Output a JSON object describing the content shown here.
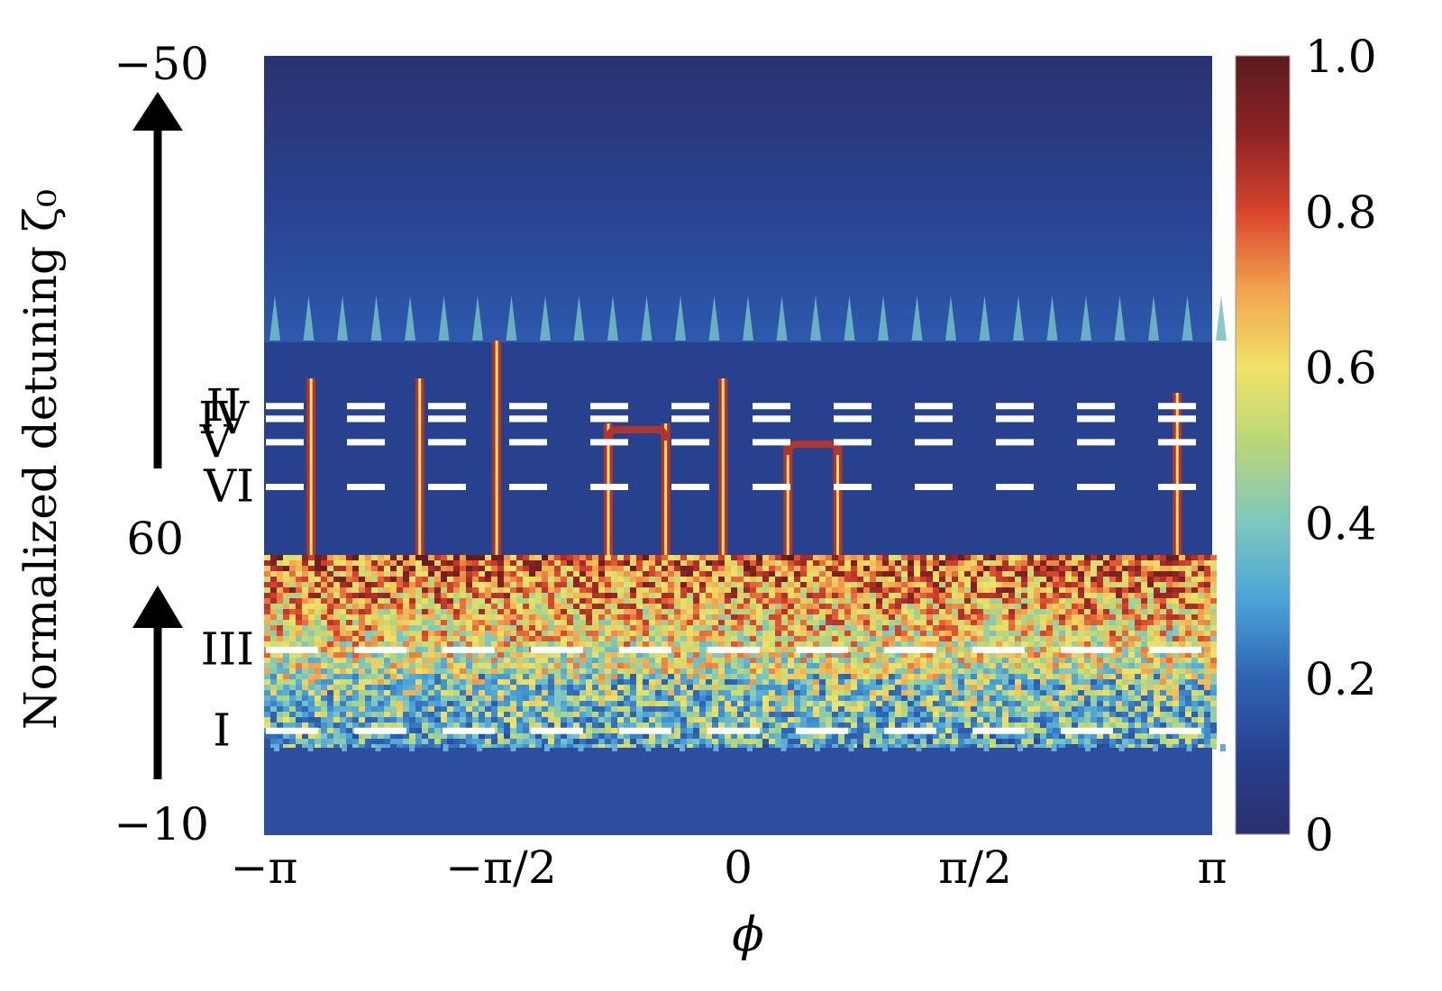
{
  "chart_data": {
    "type": "heatmap",
    "title": "",
    "xlabel": "ϕ",
    "ylabel": "Normalized detuning ζ₀",
    "x_range": [
      -3.1416,
      3.1416
    ],
    "x_ticks": [
      {
        "value": -3.1416,
        "label": "−π"
      },
      {
        "value": -1.5708,
        "label": "−π/2"
      },
      {
        "value": 0,
        "label": "0"
      },
      {
        "value": 1.5708,
        "label": "π/2"
      },
      {
        "value": 3.1416,
        "label": "π"
      }
    ],
    "y_tick_labels": {
      "top": "−50",
      "middle": "60",
      "bottom": "−10"
    },
    "y_sweep_note": "upper panel sweeps 60 → −50 (arrow up), lower panel sweeps −10 → 60 (arrow up)",
    "colorbar": {
      "range": [
        0,
        1.0
      ],
      "ticks": [
        {
          "value": 0,
          "label": "0"
        },
        {
          "value": 0.2,
          "label": "0.2"
        },
        {
          "value": 0.4,
          "label": "0.4"
        },
        {
          "value": 0.6,
          "label": "0.6"
        },
        {
          "value": 0.8,
          "label": "0.8"
        },
        {
          "value": 1.0,
          "label": "1.0"
        }
      ],
      "colormap": [
        "#2b2f6e",
        "#28408f",
        "#2f63b3",
        "#4aa3d8",
        "#7ec7c0",
        "#b8d67a",
        "#f0e268",
        "#f2a34f",
        "#d9432d",
        "#8c2426",
        "#5a1a1c"
      ]
    },
    "stage_markers": [
      {
        "label": "II",
        "panel": "upper",
        "y_frac": 0.3
      },
      {
        "label": "IV",
        "panel": "upper",
        "y_frac": 0.36
      },
      {
        "label": "V",
        "panel": "upper",
        "y_frac": 0.47
      },
      {
        "label": "VI",
        "panel": "upper",
        "y_frac": 0.68
      },
      {
        "label": "III",
        "panel": "lower",
        "y_frac": 0.34
      },
      {
        "label": "I",
        "panel": "lower",
        "y_frac": 0.63
      }
    ],
    "soliton_traces": [
      {
        "phi": -2.83,
        "value": 1.0
      },
      {
        "phi": -2.11,
        "value": 1.0
      },
      {
        "phi": -1.6,
        "value": 1.0
      },
      {
        "phi": -0.86,
        "value": 1.0
      },
      {
        "phi": -0.48,
        "value": 1.0
      },
      {
        "phi": -0.1,
        "value": 1.0
      },
      {
        "phi": 0.33,
        "value": 1.0
      },
      {
        "phi": 0.66,
        "value": 1.0
      },
      {
        "phi": 2.91,
        "value": 1.0
      }
    ],
    "grid": false,
    "legend": "colorbar-right"
  }
}
